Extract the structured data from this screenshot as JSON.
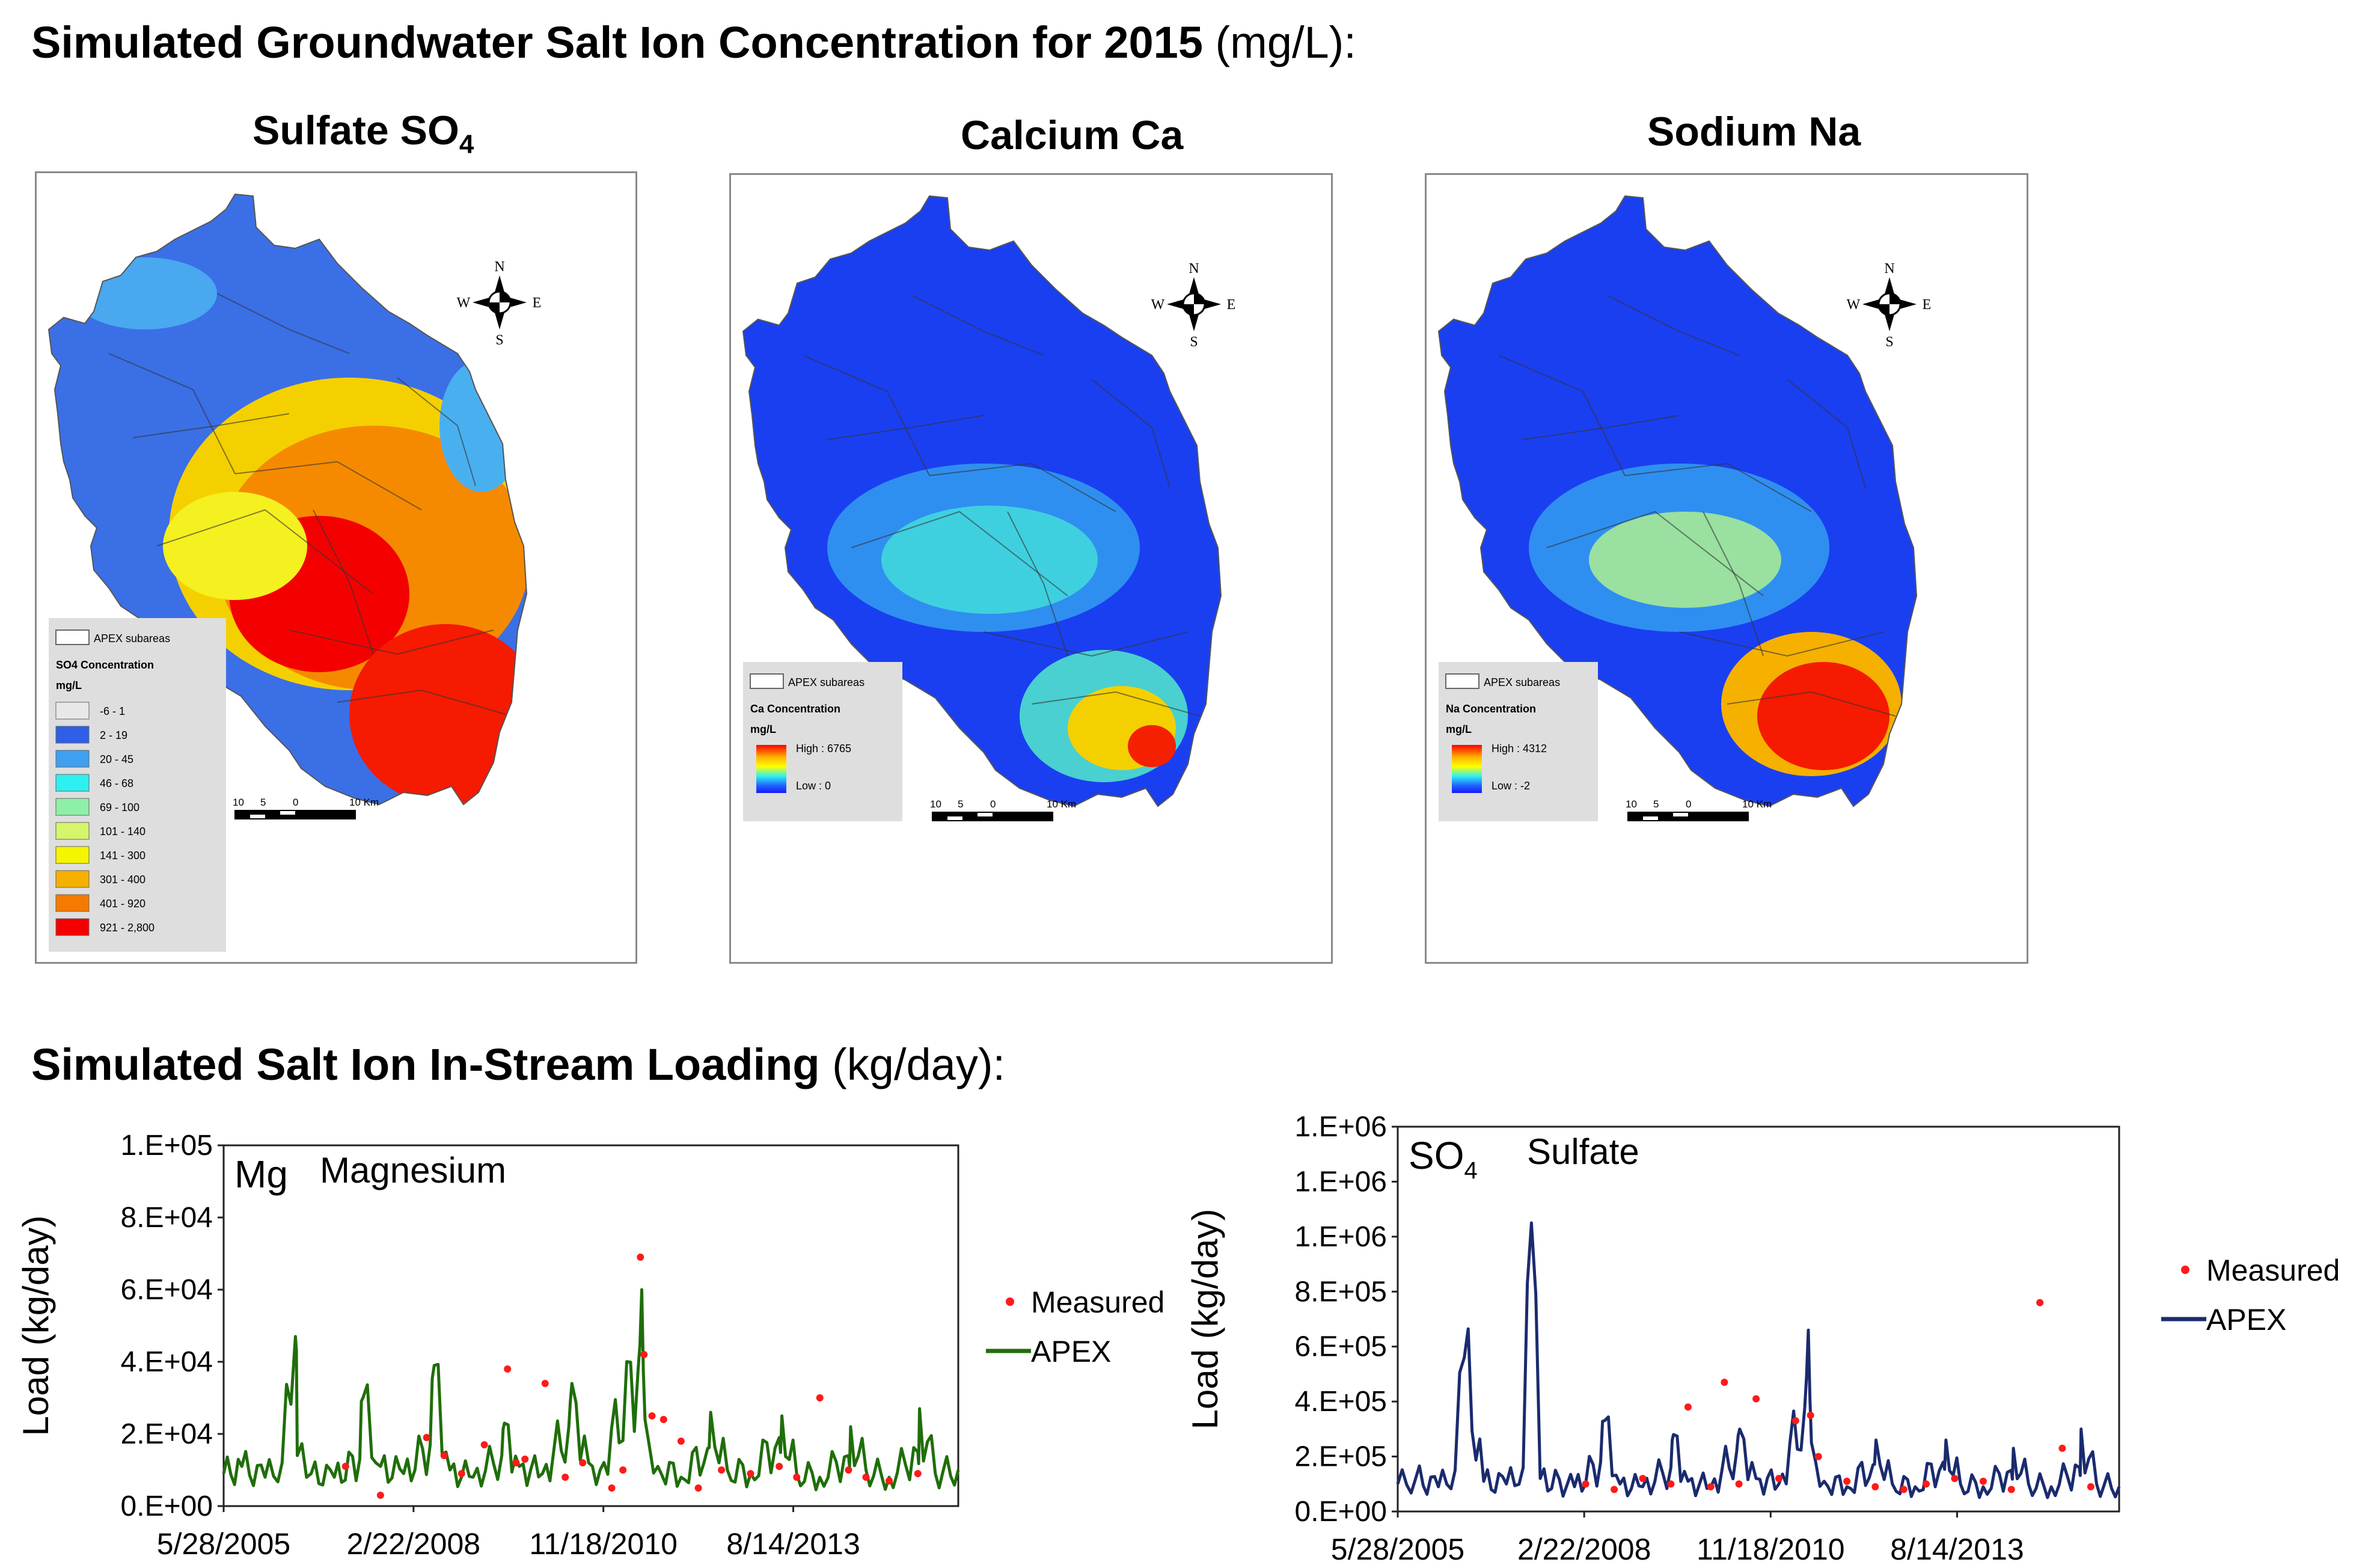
{
  "heading_maps": {
    "bold": "Simulated Groundwater Salt Ion Concentration for 2015",
    "unit": " (mg/L):"
  },
  "heading_charts": {
    "bold": "Simulated Salt Ion In-Stream Loading",
    "unit": " (kg/day):"
  },
  "maps": [
    {
      "title": "Sulfate SO",
      "title_sub": "4",
      "compass": {
        "n": "N",
        "s": "S",
        "e": "E",
        "w": "W"
      },
      "legend": {
        "subareas": "APEX subareas",
        "title": "SO4 Concentration",
        "unit": "mg/L",
        "classes": [
          {
            "label": "-6 - 1",
            "color": "#e8e8e8"
          },
          {
            "label": "2 - 19",
            "color": "#2f5fe6"
          },
          {
            "label": "20 - 45",
            "color": "#3fa0f0"
          },
          {
            "label": "46 - 68",
            "color": "#2ef0f0"
          },
          {
            "label": "69 - 100",
            "color": "#8ef0a8"
          },
          {
            "label": "101 - 140",
            "color": "#d6f56a"
          },
          {
            "label": "141 - 300",
            "color": "#f5f500"
          },
          {
            "label": "301 - 400",
            "color": "#f5b000"
          },
          {
            "label": "401 - 920",
            "color": "#f57a00"
          },
          {
            "label": "921 - 2,800",
            "color": "#f50000"
          }
        ]
      },
      "scale": {
        "l1": "10",
        "l2": "5",
        "l3": "0",
        "l4": "10 Km"
      }
    },
    {
      "title": "Calcium Ca",
      "compass": {
        "n": "N",
        "s": "S",
        "e": "E",
        "w": "W"
      },
      "legend": {
        "subareas": "APEX subareas",
        "title": "Ca Concentration",
        "unit": "mg/L",
        "high": "High : 6765",
        "low": "Low : 0"
      },
      "scale": {
        "l1": "10",
        "l2": "5",
        "l3": "0",
        "l4": "10 Km"
      }
    },
    {
      "title": "Sodium Na",
      "compass": {
        "n": "N",
        "s": "S",
        "e": "E",
        "w": "W"
      },
      "legend": {
        "subareas": "APEX subareas",
        "title": "Na Concentration",
        "unit": "mg/L",
        "high": "High : 4312",
        "low": "Low : -2"
      },
      "scale": {
        "l1": "10",
        "l2": "5",
        "l3": "0",
        "l4": "10 Km"
      }
    }
  ],
  "chart_data": [
    {
      "type": "line",
      "label_main": "Mg",
      "label_name": "Magnesium",
      "ylabel": "Load (kg/day)",
      "y_ticks": [
        "0.E+00",
        "2.E+04",
        "4.E+04",
        "6.E+04",
        "8.E+04",
        "1.E+05"
      ],
      "ylim": [
        0,
        100000
      ],
      "x_ticks": [
        "5/28/2005",
        "2/22/2008",
        "11/18/2010",
        "8/14/2013"
      ],
      "xlim": [
        "2005-05-28",
        "2015-12-31"
      ],
      "series": [
        {
          "name": "APEX",
          "color": "#1f6e0a",
          "x": [
            "2005-05-28",
            "2005-09-01",
            "2006-01-01",
            "2006-04-01",
            "2006-06-10",
            "2006-06-20",
            "2006-09-01",
            "2007-01-01",
            "2007-05-15",
            "2007-06-01",
            "2007-09-01",
            "2008-01-01",
            "2008-05-20",
            "2008-06-10",
            "2008-09-01",
            "2009-01-01",
            "2009-06-01",
            "2009-06-15",
            "2009-09-01",
            "2010-01-01",
            "2010-05-20",
            "2010-06-05",
            "2010-09-01",
            "2010-11-01",
            "2011-05-20",
            "2011-06-08",
            "2011-06-25",
            "2011-09-01",
            "2012-01-01",
            "2012-05-20",
            "2012-06-05",
            "2012-09-01",
            "2013-01-01",
            "2013-06-01",
            "2013-06-15",
            "2013-09-01",
            "2014-01-01",
            "2014-06-01",
            "2014-06-12",
            "2014-09-01",
            "2015-01-01",
            "2015-06-01",
            "2015-06-10",
            "2015-09-01",
            "2015-12-31"
          ],
          "y": [
            9000,
            11000,
            8000,
            12000,
            47000,
            14000,
            9000,
            8000,
            13000,
            30000,
            11000,
            9000,
            17000,
            39000,
            10000,
            8000,
            14000,
            23000,
            11000,
            9000,
            22000,
            34000,
            12000,
            10000,
            38000,
            60000,
            24000,
            11000,
            8000,
            16000,
            26000,
            10000,
            9000,
            19000,
            25000,
            9000,
            8000,
            14000,
            22000,
            10000,
            8000,
            15000,
            27000,
            9000,
            10000
          ]
        },
        {
          "name": "Measured",
          "color": "#ff1a1a",
          "x": [
            "2007-03-01",
            "2007-09-01",
            "2008-05-01",
            "2008-08-01",
            "2008-11-01",
            "2009-03-01",
            "2009-07-01",
            "2009-08-15",
            "2009-10-01",
            "2010-01-15",
            "2010-05-01",
            "2010-08-01",
            "2011-01-01",
            "2011-03-01",
            "2011-06-01",
            "2011-06-20",
            "2011-08-01",
            "2011-10-01",
            "2012-01-01",
            "2012-04-01",
            "2012-08-01",
            "2013-01-01",
            "2013-06-01",
            "2013-09-01",
            "2014-01-01",
            "2014-06-01",
            "2014-09-01",
            "2015-01-01",
            "2015-06-01"
          ],
          "y": [
            11000,
            3000,
            19000,
            14000,
            9000,
            17000,
            38000,
            12000,
            13000,
            34000,
            8000,
            12000,
            5000,
            10000,
            69000,
            42000,
            25000,
            24000,
            18000,
            5000,
            10000,
            9000,
            11000,
            8000,
            30000,
            10000,
            8000,
            7000,
            9000
          ]
        }
      ],
      "legend": "right"
    },
    {
      "type": "line",
      "label_main": "SO",
      "label_sub": "4",
      "label_name": "Sulfate",
      "ylabel": "Load (kg/day)",
      "y_ticks": [
        "0.E+00",
        "2.E+05",
        "4.E+05",
        "6.E+05",
        "8.E+05",
        "1.E+06",
        "1.E+06",
        "1.E+06"
      ],
      "ylim": [
        0,
        1400000
      ],
      "x_ticks": [
        "5/28/2005",
        "2/22/2008",
        "11/18/2010",
        "8/14/2013"
      ],
      "xlim": [
        "2005-05-28",
        "2015-12-31"
      ],
      "series": [
        {
          "name": "APEX",
          "color": "#1a2b6e",
          "x": [
            "2005-05-28",
            "2005-09-01",
            "2006-01-01",
            "2006-04-01",
            "2006-05-20",
            "2006-09-01",
            "2007-01-01",
            "2007-04-01",
            "2007-05-15",
            "2007-07-01",
            "2008-01-01",
            "2008-05-20",
            "2008-06-10",
            "2008-09-01",
            "2009-01-01",
            "2009-06-01",
            "2009-06-15",
            "2009-09-01",
            "2010-01-01",
            "2010-05-20",
            "2010-06-05",
            "2010-09-01",
            "2011-01-01",
            "2011-05-20",
            "2011-06-08",
            "2011-06-25",
            "2011-09-01",
            "2012-01-01",
            "2012-05-20",
            "2012-06-05",
            "2012-09-01",
            "2013-01-01",
            "2013-06-01",
            "2013-06-15",
            "2013-09-01",
            "2014-01-01",
            "2014-06-01",
            "2014-06-12",
            "2014-09-01",
            "2015-01-01",
            "2015-06-01",
            "2015-06-10",
            "2015-09-01",
            "2015-12-31"
          ],
          "y": [
            100000,
            120000,
            90000,
            150000,
            560000,
            110000,
            100000,
            160000,
            1050000,
            120000,
            90000,
            180000,
            330000,
            100000,
            90000,
            160000,
            280000,
            110000,
            90000,
            220000,
            300000,
            120000,
            100000,
            380000,
            660000,
            250000,
            110000,
            90000,
            170000,
            260000,
            100000,
            90000,
            180000,
            260000,
            100000,
            90000,
            150000,
            230000,
            100000,
            90000,
            160000,
            300000,
            100000,
            90000
          ]
        },
        {
          "name": "Measured",
          "color": "#ff1a1a",
          "x": [
            "2008-03-01",
            "2008-08-01",
            "2009-01-01",
            "2009-06-01",
            "2009-09-01",
            "2010-01-01",
            "2010-03-15",
            "2010-06-01",
            "2010-09-01",
            "2011-01-01",
            "2011-04-01",
            "2011-06-20",
            "2011-08-01",
            "2012-01-01",
            "2012-06-01",
            "2012-11-01",
            "2013-03-01",
            "2013-08-01",
            "2014-01-01",
            "2014-06-01",
            "2014-11-01",
            "2015-03-01",
            "2015-08-01"
          ],
          "y": [
            100000,
            80000,
            120000,
            100000,
            380000,
            90000,
            470000,
            100000,
            410000,
            120000,
            330000,
            350000,
            200000,
            110000,
            90000,
            80000,
            100000,
            120000,
            110000,
            80000,
            760000,
            230000,
            90000
          ]
        }
      ],
      "legend": "right"
    }
  ]
}
